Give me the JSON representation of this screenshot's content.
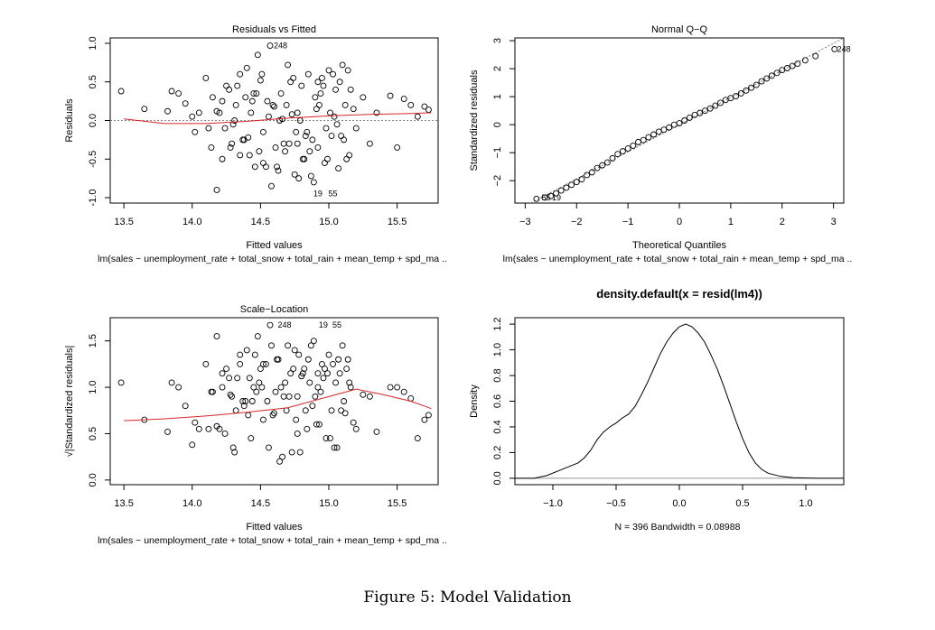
{
  "figure_caption": "Figure 5: Model Validation",
  "chart_data": [
    {
      "id": "resid_fitted",
      "type": "scatter",
      "title": "Residuals vs Fitted",
      "xlabel": "Fitted values",
      "ylabel": "Residuals",
      "sublabel": "lm(sales ~ unemployment_rate + total_snow + total_rain + mean_temp + spd_ma ..",
      "xlim": [
        13.4,
        15.8
      ],
      "ylim": [
        -1.07,
        1.07
      ],
      "xticks": [
        13.5,
        14.0,
        14.5,
        15.0,
        15.5
      ],
      "xtick_labels": [
        "13.5",
        "14.0",
        "14.5",
        "15.0",
        "15.5"
      ],
      "yticks": [
        -1.0,
        -0.5,
        0.0,
        0.5,
        1.0
      ],
      "ytick_labels": [
        "-1.0",
        "-0.5",
        "0.0",
        "0.5",
        "1.0"
      ],
      "reference_line": 0,
      "smooth_x": [
        13.5,
        13.8,
        14.1,
        14.4,
        14.7,
        15.0,
        15.3,
        15.6,
        15.75
      ],
      "smooth_y": [
        0.02,
        -0.04,
        -0.04,
        -0.01,
        0.03,
        0.06,
        0.08,
        0.09,
        0.1
      ],
      "labels": [
        {
          "x": 14.57,
          "y": 0.97,
          "text": "248"
        },
        {
          "x": 14.86,
          "y": -0.95,
          "text": "19"
        },
        {
          "x": 14.97,
          "y": -0.95,
          "text": "55"
        }
      ],
      "points_x": [
        13.48,
        13.65,
        13.82,
        13.85,
        13.9,
        13.95,
        14.0,
        14.02,
        14.05,
        14.1,
        14.12,
        14.15,
        14.18,
        14.2,
        14.22,
        14.25,
        14.28,
        14.3,
        14.32,
        14.35,
        14.38,
        14.4,
        14.42,
        14.45,
        14.48,
        14.5,
        14.52,
        14.55,
        14.57,
        14.6,
        14.62,
        14.65,
        14.67,
        14.7,
        14.72,
        14.75,
        14.77,
        14.8,
        14.82,
        14.85,
        14.87,
        14.9,
        14.92,
        14.95,
        14.97,
        15.0,
        15.02,
        15.05,
        15.07,
        15.1,
        15.12,
        15.15,
        15.18,
        15.2,
        15.25,
        15.3,
        15.35,
        15.45,
        15.5,
        15.55,
        15.6,
        15.65,
        15.7,
        15.73,
        14.22,
        14.37,
        14.52,
        14.68,
        14.83,
        14.98,
        15.13,
        14.31,
        14.46,
        14.61,
        14.76,
        14.91,
        15.06,
        14.41,
        14.56,
        14.71,
        14.86,
        15.01,
        14.27,
        14.43,
        14.59,
        14.79,
        14.94,
        15.09,
        14.14,
        14.33,
        14.49,
        14.64,
        14.81,
        14.96,
        15.11,
        14.24,
        14.44,
        14.63,
        14.74,
        14.89,
        15.04,
        14.18,
        14.39,
        14.54,
        14.69,
        14.84,
        14.99,
        15.14,
        14.29,
        14.47,
        14.66,
        14.78,
        14.93,
        15.08,
        14.35,
        14.51,
        14.73,
        14.88,
        15.03,
        14.58,
        14.77,
        14.92,
        15.16
      ],
      "points_y": [
        0.38,
        0.15,
        0.12,
        0.38,
        0.35,
        0.22,
        0.05,
        -0.15,
        0.1,
        0.55,
        -0.1,
        0.3,
        0.12,
        0.1,
        0.25,
        0.45,
        -0.35,
        -0.05,
        0.2,
        0.6,
        -0.25,
        0.68,
        -0.45,
        0.35,
        0.85,
        0.52,
        -0.55,
        0.25,
        0.97,
        0.18,
        -0.6,
        0.35,
        -0.3,
        0.72,
        0.5,
        -0.7,
        0.1,
        0.45,
        -0.5,
        0.6,
        -0.72,
        0.3,
        -0.35,
        0.55,
        -0.55,
        0.65,
        -0.2,
        0.4,
        -0.62,
        0.72,
        0.2,
        -0.45,
        0.15,
        -0.1,
        0.3,
        -0.3,
        0.1,
        0.32,
        -0.35,
        0.28,
        0.2,
        0.05,
        0.18,
        0.14,
        -0.5,
        -0.25,
        -0.15,
        -0.4,
        -0.2,
        -0.1,
        -0.5,
        0.0,
        -0.6,
        -0.35,
        -0.15,
        0.15,
        -0.05,
        -0.22,
        0.05,
        -0.3,
        -0.4,
        0.1,
        0.4,
        0.1,
        0.2,
        0.0,
        0.35,
        -0.2,
        -0.35,
        0.45,
        -0.4,
        0.0,
        -0.5,
        0.45,
        -0.25,
        -0.1,
        0.25,
        -0.65,
        0.55,
        -0.8,
        0.05,
        -0.9,
        0.3,
        -0.6,
        0.2,
        -0.15,
        -0.5,
        0.65,
        -0.3,
        0.35,
        0.02,
        -0.75,
        0.2,
        0.5,
        -0.45,
        0.6,
        0.08,
        -0.25,
        0.6,
        -0.85,
        -0.3,
        0.5,
        0.4
      ]
    },
    {
      "id": "normal_qq",
      "type": "scatter",
      "title": "Normal Q−Q",
      "xlabel": "Theoretical Quantiles",
      "ylabel": "Standardized residuals",
      "sublabel": "lm(sales ~ unemployment_rate + total_snow + total_rain + mean_temp + spd_ma ..",
      "xlim": [
        -3.2,
        3.2
      ],
      "ylim": [
        -2.8,
        3.1
      ],
      "xticks": [
        -3,
        -2,
        -1,
        0,
        1,
        2,
        3
      ],
      "xtick_labels": [
        "−3",
        "−2",
        "−1",
        "0",
        "1",
        "2",
        "3"
      ],
      "yticks": [
        -2,
        -1,
        0,
        1,
        2,
        3
      ],
      "ytick_labels": [
        "−2",
        "−1",
        "0",
        "1",
        "2",
        "3"
      ],
      "reference_line_xy": [
        [
          -3.2,
          -3.1
        ],
        [
          3.2,
          3.1
        ]
      ],
      "labels": [
        {
          "x": 3.0,
          "y": 2.7,
          "text": "248"
        },
        {
          "x": -2.75,
          "y": -2.6,
          "text": "55"
        },
        {
          "x": -2.55,
          "y": -2.6,
          "text": "19"
        }
      ],
      "points_x": [
        -2.78,
        -2.62,
        -2.5,
        -2.4,
        -2.3,
        -2.2,
        -2.1,
        -2.0,
        -1.9,
        -1.8,
        -1.7,
        -1.6,
        -1.5,
        -1.4,
        -1.3,
        -1.2,
        -1.1,
        -1.0,
        -0.9,
        -0.8,
        -0.7,
        -0.6,
        -0.5,
        -0.4,
        -0.3,
        -0.2,
        -0.1,
        0.0,
        0.1,
        0.2,
        0.3,
        0.4,
        0.5,
        0.6,
        0.7,
        0.8,
        0.9,
        1.0,
        1.1,
        1.2,
        1.3,
        1.4,
        1.5,
        1.6,
        1.7,
        1.8,
        1.9,
        2.0,
        2.1,
        2.2,
        2.3,
        2.45,
        2.65,
        3.02
      ],
      "points_y": [
        -2.65,
        -2.6,
        -2.55,
        -2.45,
        -2.35,
        -2.25,
        -2.15,
        -2.05,
        -1.95,
        -1.8,
        -1.7,
        -1.55,
        -1.45,
        -1.35,
        -1.2,
        -1.05,
        -0.95,
        -0.85,
        -0.75,
        -0.62,
        -0.55,
        -0.45,
        -0.35,
        -0.25,
        -0.18,
        -0.1,
        0.0,
        0.05,
        0.15,
        0.25,
        0.35,
        0.42,
        0.5,
        0.58,
        0.68,
        0.78,
        0.88,
        0.95,
        1.02,
        1.12,
        1.22,
        1.32,
        1.42,
        1.55,
        1.65,
        1.75,
        1.85,
        1.95,
        2.02,
        2.1,
        2.18,
        2.3,
        2.45,
        2.7
      ]
    },
    {
      "id": "scale_location",
      "type": "scatter",
      "title": "Scale−Location",
      "xlabel": "Fitted values",
      "ylabel": "√|Standardized residuals|",
      "sublabel": "lm(sales ~ unemployment_rate + total_snow + total_rain + mean_temp + spd_ma ..",
      "xlim": [
        13.4,
        15.8
      ],
      "ylim": [
        -0.05,
        1.75
      ],
      "xticks": [
        13.5,
        14.0,
        14.5,
        15.0,
        15.5
      ],
      "xtick_labels": [
        "13.5",
        "14.0",
        "14.5",
        "15.0",
        "15.5"
      ],
      "yticks": [
        0.0,
        0.5,
        1.0,
        1.5
      ],
      "ytick_labels": [
        "0.0",
        "0.5",
        "1.0",
        "1.5"
      ],
      "smooth_x": [
        13.5,
        13.8,
        14.1,
        14.4,
        14.7,
        15.0,
        15.2,
        15.4,
        15.6,
        15.75
      ],
      "smooth_y": [
        0.64,
        0.66,
        0.69,
        0.73,
        0.78,
        0.9,
        0.98,
        0.92,
        0.85,
        0.77
      ],
      "labels": [
        {
          "x": 14.6,
          "y": 1.67,
          "text": "248"
        },
        {
          "x": 14.9,
          "y": 1.67,
          "text": "19"
        },
        {
          "x": 15.0,
          "y": 1.67,
          "text": "55"
        }
      ],
      "points_x": [
        13.48,
        13.65,
        13.82,
        13.85,
        13.9,
        13.95,
        14.0,
        14.02,
        14.05,
        14.1,
        14.12,
        14.15,
        14.18,
        14.2,
        14.22,
        14.25,
        14.28,
        14.3,
        14.32,
        14.35,
        14.38,
        14.4,
        14.42,
        14.45,
        14.48,
        14.5,
        14.52,
        14.55,
        14.57,
        14.6,
        14.62,
        14.65,
        14.67,
        14.7,
        14.72,
        14.75,
        14.77,
        14.8,
        14.82,
        14.85,
        14.87,
        14.9,
        14.92,
        14.95,
        14.97,
        15.0,
        15.02,
        15.05,
        15.07,
        15.1,
        15.12,
        15.15,
        15.18,
        15.2,
        15.25,
        15.3,
        15.35,
        15.45,
        15.5,
        15.55,
        15.6,
        15.65,
        15.7,
        15.73,
        14.22,
        14.37,
        14.52,
        14.68,
        14.83,
        14.98,
        15.13,
        14.31,
        14.46,
        14.61,
        14.76,
        14.91,
        15.06,
        14.41,
        14.56,
        14.71,
        14.86,
        15.01,
        14.27,
        14.43,
        14.59,
        14.79,
        14.94,
        15.09,
        14.14,
        14.33,
        14.49,
        14.64,
        14.81,
        14.96,
        15.11,
        14.24,
        14.44,
        14.63,
        14.74,
        14.89,
        15.04,
        14.18,
        14.39,
        14.54,
        14.69,
        14.84,
        14.99,
        15.14,
        14.29,
        14.47,
        14.66,
        14.78,
        14.93,
        15.08,
        14.35,
        14.51,
        14.73,
        14.88,
        15.03,
        14.58,
        14.77,
        14.92,
        15.16
      ],
      "points_y": [
        1.05,
        0.65,
        0.52,
        1.05,
        1.0,
        0.8,
        0.38,
        0.62,
        0.55,
        1.25,
        0.55,
        0.95,
        0.58,
        0.55,
        1.0,
        1.2,
        0.92,
        0.35,
        0.75,
        1.35,
        0.8,
        1.4,
        1.1,
        1.0,
        1.55,
        1.2,
        1.25,
        0.85,
        1.67,
        0.72,
        1.3,
        1.0,
        0.9,
        1.45,
        1.15,
        1.4,
        0.5,
        1.12,
        1.2,
        1.3,
        1.45,
        0.9,
        1.0,
        1.25,
        1.2,
        1.35,
        0.75,
        1.05,
        1.3,
        1.45,
        0.72,
        1.05,
        0.62,
        0.55,
        0.92,
        0.9,
        0.52,
        1.0,
        1.0,
        0.95,
        0.88,
        0.45,
        0.65,
        0.7,
        1.15,
        0.85,
        0.65,
        1.05,
        0.75,
        0.45,
        1.2,
        0.3,
        1.35,
        0.95,
        0.65,
        0.6,
        0.35,
        0.7,
        0.35,
        0.9,
        1.05,
        0.45,
        1.1,
        0.45,
        0.7,
        0.3,
        0.95,
        0.75,
        0.95,
        1.1,
        1.05,
        0.2,
        1.15,
        1.1,
        0.85,
        0.5,
        0.85,
        1.3,
        1.2,
        1.5,
        0.35,
        1.55,
        0.85,
        1.25,
        0.75,
        0.55,
        1.15,
        1.3,
        0.9,
        0.95,
        0.25,
        1.35,
        0.6,
        1.15,
        1.25,
        1.0,
        0.3,
        0.8,
        1.25,
        1.45,
        0.9,
        1.15,
        1.0
      ]
    },
    {
      "id": "density",
      "type": "line",
      "title": "density.default(x = resid(lm4))",
      "xlabel": "",
      "ylabel": "Density",
      "sublabel": "N = 396   Bandwidth = 0.08988",
      "xlim": [
        -1.3,
        1.3
      ],
      "ylim": [
        -0.05,
        1.25
      ],
      "xticks": [
        -1.0,
        -0.5,
        0.0,
        0.5,
        1.0
      ],
      "xtick_labels": [
        "−1.0",
        "−0.5",
        "0.0",
        "0.5",
        "1.0"
      ],
      "yticks": [
        0.0,
        0.2,
        0.4,
        0.6,
        0.8,
        1.0,
        1.2
      ],
      "ytick_labels": [
        "0.0",
        "0.2",
        "0.4",
        "0.6",
        "0.8",
        "1.0",
        "1.2"
      ],
      "reference_line": 0,
      "x": [
        -1.3,
        -1.15,
        -1.05,
        -0.95,
        -0.85,
        -0.8,
        -0.75,
        -0.7,
        -0.65,
        -0.6,
        -0.55,
        -0.5,
        -0.45,
        -0.4,
        -0.35,
        -0.3,
        -0.25,
        -0.2,
        -0.15,
        -0.1,
        -0.05,
        0.0,
        0.05,
        0.1,
        0.15,
        0.2,
        0.25,
        0.3,
        0.35,
        0.4,
        0.45,
        0.5,
        0.55,
        0.6,
        0.65,
        0.7,
        0.8,
        0.9,
        1.0,
        1.1,
        1.2,
        1.3
      ],
      "y": [
        0.0,
        0.0,
        0.02,
        0.06,
        0.1,
        0.12,
        0.16,
        0.22,
        0.3,
        0.36,
        0.4,
        0.43,
        0.47,
        0.5,
        0.56,
        0.65,
        0.75,
        0.86,
        0.97,
        1.06,
        1.13,
        1.18,
        1.2,
        1.18,
        1.13,
        1.06,
        0.96,
        0.85,
        0.72,
        0.58,
        0.44,
        0.31,
        0.2,
        0.12,
        0.07,
        0.04,
        0.015,
        0.005,
        0.002,
        0.0,
        0.0,
        0.0
      ]
    }
  ]
}
